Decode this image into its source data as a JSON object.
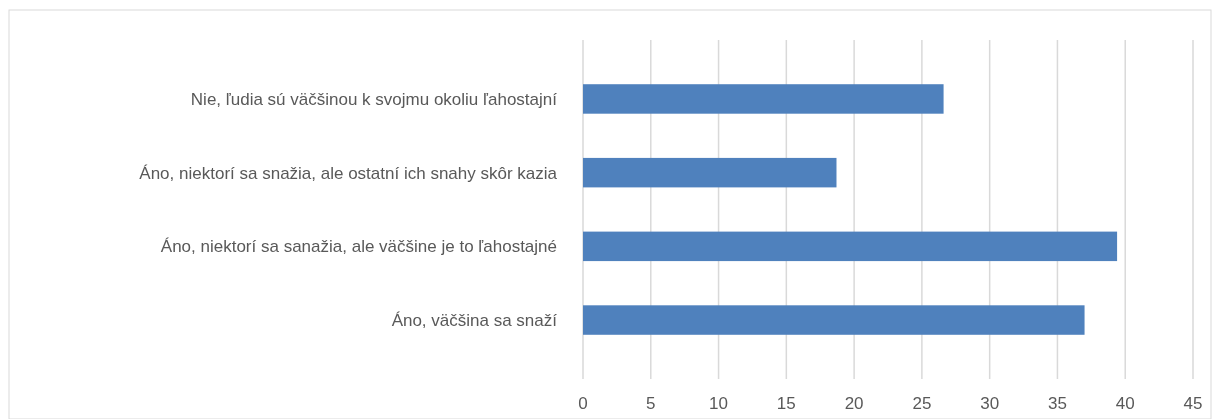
{
  "chart_data": {
    "type": "bar",
    "orientation": "horizontal",
    "categories": [
      "Nie, ľudia sú väčšinou k svojmu okoliu ľahostajní",
      "Áno, niektorí sa snažia, ale ostatní ich snahy skôr kazia",
      "Áno, niektorí sa sanažia, ale väčšine je to ľahostajné",
      "Áno, väčšina sa snaží"
    ],
    "values": [
      26.6,
      18.7,
      39.4,
      37.0
    ],
    "color": "#4f81bd",
    "xlim": [
      0,
      45
    ],
    "xticks": [
      0,
      5,
      10,
      15,
      20,
      25,
      30,
      35,
      40,
      45
    ],
    "grid": "x"
  }
}
